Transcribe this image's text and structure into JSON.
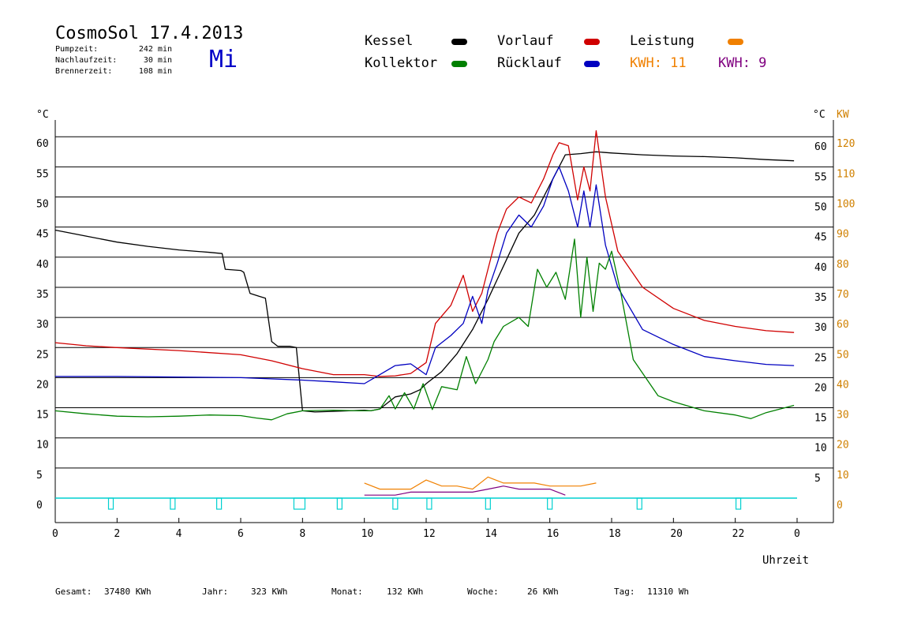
{
  "header": {
    "title": "CosmoSol 17.4.2013",
    "day": "Mi",
    "info": [
      {
        "label": "Pumpzeit:",
        "value": "242 min"
      },
      {
        "label": "Nachlaufzeit:",
        "value": "30 min"
      },
      {
        "label": "Brennerzeit:",
        "value": "108 min"
      }
    ]
  },
  "legend": {
    "kessel": "Kessel",
    "kollektor": "Kollektor",
    "vorlauf": "Vorlauf",
    "ruecklauf": "Rücklauf",
    "leistung": "Leistung",
    "kwh1": "KWH: 11",
    "kwh2": "KWH: 9"
  },
  "colors": {
    "kessel": "#000000",
    "kollektor": "#008000",
    "vorlauf": "#d00000",
    "ruecklauf": "#0000c0",
    "leistung": "#f08000",
    "kwh2": "#800080",
    "pump": "#00d0d0",
    "right_axis": "#d08000"
  },
  "chart_data": {
    "type": "line",
    "xlabel": "Uhrzeit",
    "ylabel_left": "°C",
    "ylabel_right_1": "°C",
    "ylabel_right_2": "KW",
    "xlim": [
      0,
      24
    ],
    "ylim": [
      -4,
      65
    ],
    "x_ticks": [
      "0",
      "2",
      "4",
      "6",
      "8",
      "10",
      "12",
      "14",
      "16",
      "18",
      "20",
      "22",
      "0"
    ],
    "y_ticks_left": [
      0,
      5,
      10,
      15,
      20,
      25,
      30,
      35,
      40,
      45,
      50,
      55,
      60
    ],
    "y_ticks_right": [
      5,
      10,
      15,
      20,
      25,
      30,
      35,
      40,
      45,
      50,
      55,
      60
    ],
    "y_ticks_kw": [
      0,
      10,
      20,
      30,
      40,
      50,
      60,
      70,
      80,
      90,
      100,
      110,
      120
    ],
    "series": [
      {
        "name": "Kessel",
        "key": "kessel",
        "x": [
          0,
          1,
          2,
          3,
          4,
          5,
          5.4,
          5.5,
          6,
          6.1,
          6.3,
          6.6,
          6.8,
          7,
          7.2,
          7.6,
          7.8,
          8,
          8.4,
          9,
          10,
          10.2,
          10.5,
          10.8,
          11,
          11.5,
          11.8,
          12,
          12.5,
          13,
          13.5,
          14,
          14.5,
          15,
          15.5,
          16,
          16.5,
          17,
          17.5,
          18,
          19,
          20,
          21,
          22,
          23,
          23.9
        ],
        "y": [
          44.5,
          43.5,
          42.5,
          41.8,
          41.2,
          40.8,
          40.6,
          38,
          37.8,
          37.5,
          34,
          33.5,
          33.2,
          26,
          25.2,
          25.2,
          25,
          14.5,
          14.3,
          14.4,
          14.6,
          14.5,
          14.8,
          16,
          16.8,
          17.3,
          18,
          19,
          21,
          24,
          28,
          33,
          38.5,
          44,
          47,
          52,
          57,
          57.2,
          57.5,
          57.3,
          57,
          56.8,
          56.7,
          56.5,
          56.2,
          56
        ]
      },
      {
        "name": "Vorlauf",
        "key": "vorlauf",
        "x": [
          0,
          1,
          2,
          4,
          6,
          7,
          8,
          9,
          10,
          10.5,
          11,
          11.5,
          12,
          12.3,
          12.8,
          13.2,
          13.5,
          13.8,
          14,
          14.3,
          14.6,
          15,
          15.4,
          15.8,
          16.1,
          16.3,
          16.6,
          16.9,
          17.1,
          17.3,
          17.5,
          17.8,
          18.2,
          19,
          20,
          21,
          22,
          23,
          23.9
        ],
        "y": [
          25.8,
          25.3,
          25,
          24.5,
          23.8,
          22.8,
          21.5,
          20.5,
          20.5,
          20.2,
          20.3,
          20.7,
          22.5,
          29,
          32,
          37,
          31,
          34,
          38,
          44,
          48,
          50,
          49,
          53,
          57,
          59,
          58.5,
          49.5,
          55,
          51,
          61,
          50,
          41,
          35,
          31.5,
          29.5,
          28.5,
          27.8,
          27.5
        ]
      },
      {
        "name": "Rücklauf",
        "key": "ruecklauf",
        "x": [
          0,
          2,
          4,
          6,
          8,
          9,
          10,
          10.5,
          11,
          11.5,
          12,
          12.3,
          12.8,
          13.2,
          13.5,
          13.8,
          14,
          14.3,
          14.6,
          15,
          15.4,
          15.8,
          16.1,
          16.3,
          16.6,
          16.9,
          17.1,
          17.3,
          17.5,
          17.8,
          18.2,
          19,
          20,
          21,
          22,
          23,
          23.9
        ],
        "y": [
          20.2,
          20.2,
          20.1,
          20,
          19.6,
          19.3,
          19,
          20.5,
          22,
          22.3,
          20.5,
          25,
          27,
          29,
          33.5,
          29,
          34.5,
          39,
          44,
          47,
          45,
          48.5,
          53,
          55,
          51,
          45,
          51,
          45,
          52,
          42,
          35,
          28,
          25.5,
          23.5,
          22.8,
          22.2,
          22
        ]
      },
      {
        "name": "Kollektor",
        "key": "kollektor",
        "x": [
          0,
          1,
          2,
          3,
          4,
          5,
          6,
          6.5,
          7,
          7.5,
          8,
          9,
          9.8,
          10.2,
          10.5,
          10.8,
          11,
          11.3,
          11.6,
          11.9,
          12.2,
          12.5,
          13,
          13.3,
          13.6,
          14,
          14.2,
          14.5,
          15,
          15.3,
          15.6,
          15.9,
          16.2,
          16.5,
          16.8,
          17,
          17.2,
          17.4,
          17.6,
          17.8,
          18,
          18.3,
          18.7,
          19.5,
          20,
          21,
          22,
          22.5,
          23,
          23.9
        ],
        "y": [
          14.5,
          14,
          13.6,
          13.5,
          13.6,
          13.8,
          13.7,
          13.3,
          13,
          14,
          14.5,
          14.6,
          14.5,
          14.5,
          14.8,
          17,
          14.8,
          17.5,
          14.8,
          19,
          14.7,
          18.5,
          18,
          23.5,
          19,
          23,
          26,
          28.5,
          30,
          28.5,
          38,
          35,
          37.5,
          33,
          43,
          30,
          40,
          31,
          39,
          38,
          41,
          34,
          23,
          17,
          16,
          14.5,
          13.8,
          13.2,
          14.2,
          15.4
        ]
      }
    ],
    "power_kw": {
      "x": [
        10,
        10.5,
        11,
        11.5,
        12,
        12.5,
        13,
        13.5,
        14,
        14.5,
        15,
        15.5,
        16,
        16.5,
        17,
        17.5
      ],
      "y": [
        5,
        3,
        3,
        3,
        6,
        4,
        4,
        3,
        7,
        5,
        5,
        5,
        4,
        4,
        4,
        5
      ]
    },
    "power_kwh2": {
      "x": [
        10,
        10.5,
        11,
        11.5,
        12,
        12.5,
        13,
        13.5,
        14,
        14.5,
        15,
        15.5,
        16,
        16.5
      ],
      "y": [
        1,
        1,
        1,
        2,
        2,
        2,
        2,
        2,
        3,
        4,
        3,
        3,
        3,
        1
      ]
    },
    "pump_pulses": [
      1.8,
      3.8,
      5.3,
      7.9,
      9.2,
      11,
      12.1,
      14,
      16,
      18.9,
      22.1
    ]
  },
  "footer": [
    {
      "label": "Gesamt:",
      "value": "37480 KWh"
    },
    {
      "label": "Jahr:",
      "value": "323 KWh"
    },
    {
      "label": "Monat:",
      "value": "132 KWh"
    },
    {
      "label": "Woche:",
      "value": "26 KWh"
    },
    {
      "label": "Tag:",
      "value": "11310 Wh"
    }
  ]
}
